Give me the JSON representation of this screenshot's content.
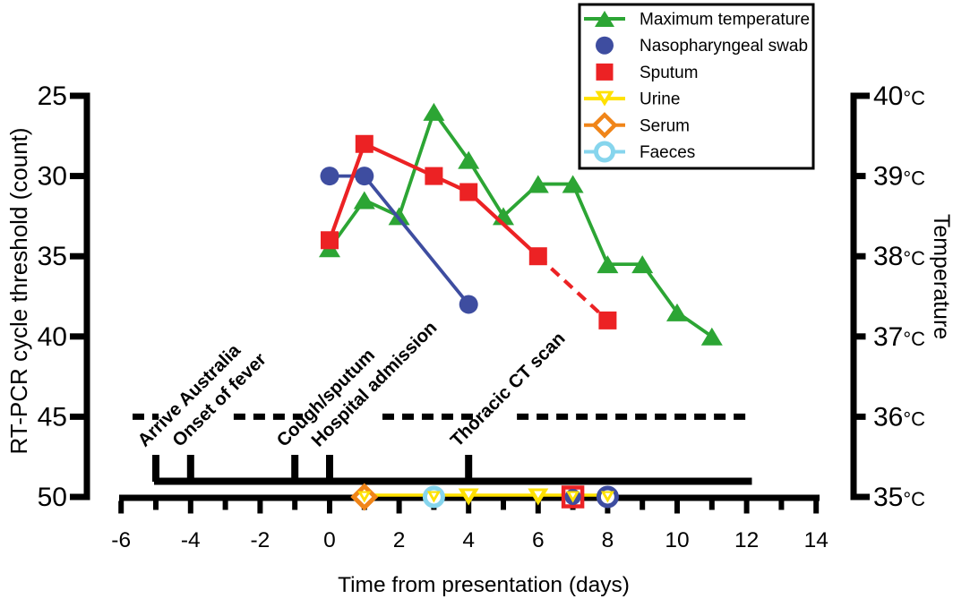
{
  "figure": {
    "background": "#ffffff"
  },
  "chart_data": {
    "type": "line",
    "xlabel": "Time from presentation (days)",
    "left_axis": {
      "label": "RT-PCR cycle threshold (count)",
      "ticks": [
        25,
        30,
        35,
        40,
        45,
        50
      ],
      "range": [
        25,
        50
      ],
      "inverted": true
    },
    "right_axis": {
      "label": "Temperature",
      "tick_labels": [
        "40°C",
        "39°C",
        "38°C",
        "37°C",
        "36°C",
        "35°C"
      ],
      "tick_values": [
        40,
        39,
        38,
        37,
        36,
        35
      ],
      "range": [
        35,
        40
      ]
    },
    "x_axis": {
      "tick_values": [
        -6,
        -5,
        -4,
        -3,
        -2,
        -1,
        0,
        1,
        2,
        3,
        4,
        5,
        6,
        7,
        8,
        9,
        10,
        11,
        12,
        13,
        14
      ],
      "labeled_ticks": [
        -6,
        -4,
        -2,
        0,
        2,
        4,
        6,
        8,
        10,
        12,
        14
      ],
      "range": [
        -6,
        14
      ]
    },
    "series": [
      {
        "name": "Maximum temperature",
        "axis": "right",
        "color": "#2CA534",
        "marker": "triangle",
        "x": [
          0,
          1,
          2,
          3,
          4,
          5,
          6,
          7,
          8,
          9,
          10,
          11
        ],
        "y": [
          38.1,
          38.7,
          38.5,
          39.8,
          39.2,
          38.5,
          38.9,
          38.9,
          37.9,
          37.9,
          37.3,
          37.0
        ]
      },
      {
        "name": "Nasopharyngeal swab",
        "axis": "left",
        "color": "#3E4DA0",
        "marker": "circle",
        "x": [
          0,
          1,
          4
        ],
        "y": [
          30,
          30,
          38
        ]
      },
      {
        "name": "Sputum",
        "axis": "left",
        "color": "#EC2224",
        "marker": "square",
        "x": [
          0,
          1,
          3,
          4,
          6
        ],
        "y": [
          34,
          28,
          30,
          31,
          35
        ],
        "dashed_extension": {
          "x": [
            6,
            8
          ],
          "y": [
            35,
            39
          ]
        }
      }
    ],
    "negative_results_baseline": {
      "value": 50,
      "line_color": "#FFE100",
      "line_span_days": [
        1,
        8
      ],
      "markers": [
        {
          "day": 1,
          "stack": [
            "serum",
            "urine"
          ]
        },
        {
          "day": 3,
          "stack": [
            "faeces",
            "urine"
          ]
        },
        {
          "day": 4,
          "stack": [
            "urine_big"
          ]
        },
        {
          "day": 6,
          "stack": [
            "urine_big"
          ]
        },
        {
          "day": 7,
          "stack": [
            "sputum_open",
            "swab_filled",
            "urine"
          ]
        },
        {
          "day": 8,
          "stack": [
            "swab_open",
            "urine"
          ]
        }
      ]
    },
    "events": {
      "items": [
        {
          "label": "Arrive Australia",
          "day": -5
        },
        {
          "label": "Onset of fever",
          "day": -4
        },
        {
          "label": "Cough/sputum",
          "day": -1
        },
        {
          "label": "Hospital admission",
          "day": 0
        },
        {
          "label": "Thoracic CT scan",
          "day": 4
        }
      ],
      "line_span_days": [
        -5,
        12.1
      ]
    },
    "dashed_guide": {
      "count": 45,
      "segments_days": [
        [
          -5.67,
          -4.92
        ],
        [
          -2.76,
          -0.77
        ],
        [
          1.52,
          4.28
        ],
        [
          5.39,
          12.09
        ]
      ]
    },
    "legend": {
      "entries": [
        {
          "label": "Maximum temperature",
          "marker": "triangle",
          "filled": true,
          "line": true,
          "color": "#2CA534"
        },
        {
          "label": "Nasopharyngeal swab",
          "marker": "circle",
          "filled": true,
          "line": false,
          "color": "#3E4DA0"
        },
        {
          "label": "Sputum",
          "marker": "square",
          "filled": true,
          "line": false,
          "color": "#EC2224"
        },
        {
          "label": "Urine",
          "marker": "triangle_down",
          "filled": false,
          "line": true,
          "color": "#FFE100"
        },
        {
          "label": "Serum",
          "marker": "diamond",
          "filled": false,
          "line": true,
          "color": "#F08519"
        },
        {
          "label": "Faeces",
          "marker": "circle",
          "filled": false,
          "line": true,
          "color": "#86D5ED"
        }
      ]
    },
    "colors": {
      "green": "#2CA534",
      "navy": "#3E4DA0",
      "red": "#EC2224",
      "yellow": "#FFE100",
      "orange": "#F08519",
      "cyan": "#86D5ED",
      "black": "#000000"
    }
  }
}
